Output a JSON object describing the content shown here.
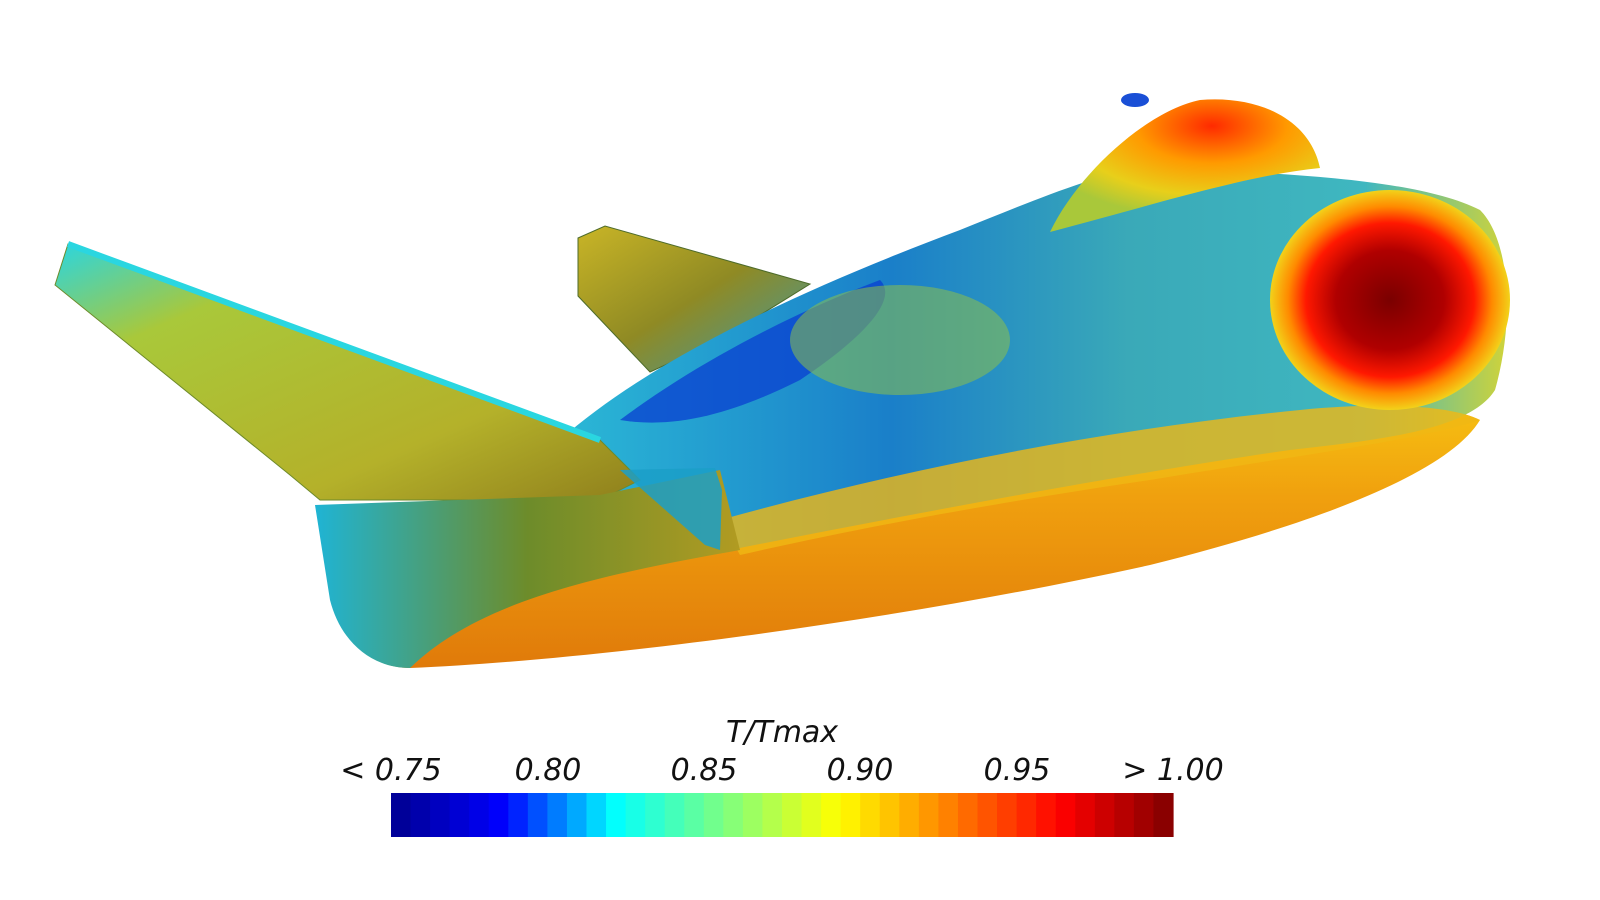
{
  "colorbar": {
    "title": "T/Tmax",
    "ticks": [
      "< 0.75",
      "0.80",
      "0.85",
      "0.90",
      "0.95",
      "> 1.00"
    ],
    "range": [
      0.75,
      1.0
    ],
    "levels": 40,
    "colormap": [
      "#00008f",
      "#0000ff",
      "#00ffff",
      "#7fff7f",
      "#ffff00",
      "#ff7f00",
      "#ff0000",
      "#7f0000"
    ]
  },
  "model": {
    "name": "spaceplane",
    "shading": "temperature-contour"
  }
}
